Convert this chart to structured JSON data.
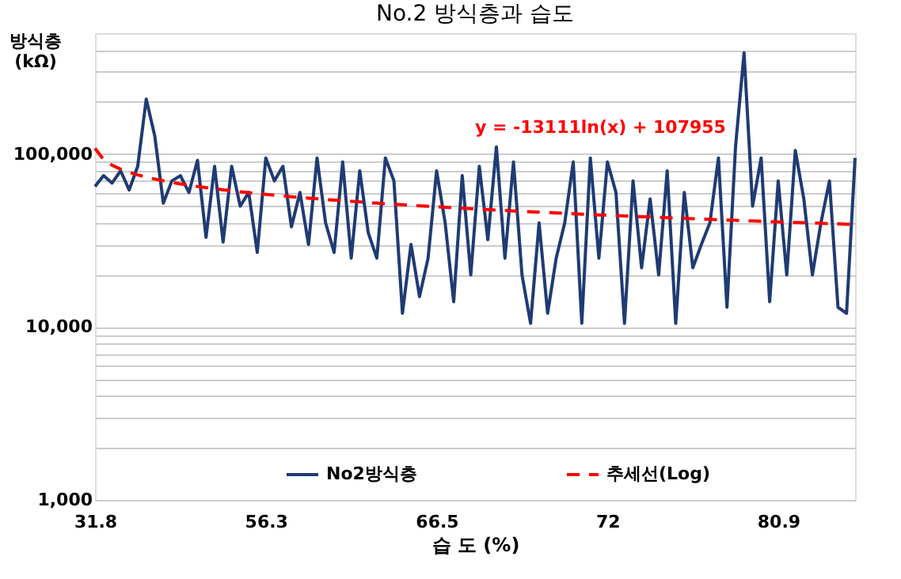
{
  "chart_data": {
    "type": "line",
    "title": "No.2 방식층과 습도",
    "xlabel": "습 도 (%)",
    "ylabel": "방식층 (kΩ)",
    "log": "y",
    "categories": [
      "31.8",
      null,
      null,
      null,
      null,
      null,
      null,
      null,
      null,
      null,
      null,
      null,
      null,
      null,
      null,
      null,
      null,
      null,
      null,
      null,
      "56.3",
      null,
      null,
      null,
      null,
      null,
      null,
      null,
      null,
      null,
      null,
      null,
      null,
      null,
      null,
      null,
      null,
      null,
      null,
      null,
      "66.5",
      null,
      null,
      null,
      null,
      null,
      null,
      null,
      null,
      null,
      null,
      null,
      null,
      null,
      null,
      null,
      null,
      null,
      null,
      null,
      "72",
      null,
      null,
      null,
      null,
      null,
      null,
      null,
      null,
      null,
      null,
      null,
      null,
      null,
      null,
      null,
      null,
      null,
      null,
      null,
      "80.9",
      null,
      null,
      null,
      null,
      null,
      null,
      null,
      null,
      null
    ],
    "series": [
      {
        "name": "No2방식층",
        "color": "#1f3b73",
        "line_style": "solid",
        "values": [
          65000,
          75000,
          68000,
          80000,
          62000,
          85000,
          208000,
          127000,
          52000,
          70000,
          75000,
          60000,
          92000,
          33000,
          85000,
          31000,
          85000,
          50000,
          60000,
          27000,
          95000,
          70000,
          85000,
          38000,
          60000,
          30000,
          95000,
          40000,
          27000,
          90000,
          25000,
          80000,
          35000,
          25000,
          95000,
          70000,
          12000,
          30000,
          15000,
          25000,
          80000,
          40000,
          14000,
          75000,
          20000,
          85000,
          32000,
          110000,
          25000,
          90000,
          20000,
          10500,
          40000,
          12000,
          25000,
          40000,
          90000,
          10500,
          95000,
          25000,
          90000,
          60000,
          10500,
          70000,
          22000,
          55000,
          20000,
          80000,
          10500,
          60000,
          22000,
          30000,
          40000,
          95000,
          13000,
          110000,
          385000,
          50000,
          95000,
          14000,
          70000,
          20000,
          105000,
          55000,
          20000,
          40000,
          70000,
          13000,
          12000,
          95000
        ]
      },
      {
        "name": "추세선(Log)",
        "color": "#ff0000",
        "line_style": "dashed",
        "values": [
          107955,
          93020,
          86220,
          81760,
          78440,
          75790,
          73590,
          71720,
          70060,
          68610,
          67290,
          66090,
          64990,
          63980,
          63040,
          62170,
          61350,
          60570,
          59840,
          59160,
          58500,
          57870,
          57270,
          56700,
          56150,
          55630,
          55130,
          54650,
          54160,
          53720,
          53280,
          52860,
          52440,
          52050,
          51670,
          51290,
          50920,
          50570,
          50230,
          49890,
          49560,
          49240,
          48930,
          48630,
          48330,
          48020,
          47750,
          47470,
          47190,
          46920,
          46660,
          46410,
          46160,
          45900,
          45670,
          45430,
          45190,
          44960,
          44730,
          44510,
          44300,
          44080,
          43870,
          43660,
          43460,
          43250,
          43060,
          42860,
          42680,
          42470,
          42280,
          42100,
          41930,
          41740,
          41560,
          41390,
          41220,
          41050,
          40880,
          40710,
          40550,
          40390,
          40220,
          40070,
          39910,
          39770,
          39610,
          39450,
          39310,
          39160
        ]
      }
    ],
    "ylim": [
      1000,
      500000
    ],
    "yticks": [
      {
        "value": 1000,
        "label": "1,000"
      },
      {
        "value": 2000,
        "label": null
      },
      {
        "value": 3000,
        "label": null
      },
      {
        "value": 4000,
        "label": null
      },
      {
        "value": 5000,
        "label": null
      },
      {
        "value": 6000,
        "label": null
      },
      {
        "value": 7000,
        "label": null
      },
      {
        "value": 8000,
        "label": null
      },
      {
        "value": 9000,
        "label": null
      },
      {
        "value": 10000,
        "label": "10,000"
      },
      {
        "value": 20000,
        "label": null
      },
      {
        "value": 30000,
        "label": null
      },
      {
        "value": 40000,
        "label": null
      },
      {
        "value": 50000,
        "label": null
      },
      {
        "value": 60000,
        "label": null
      },
      {
        "value": 70000,
        "label": null
      },
      {
        "value": 80000,
        "label": null
      },
      {
        "value": 90000,
        "label": null
      },
      {
        "value": 100000,
        "label": "100,000"
      },
      {
        "value": 200000,
        "label": null
      },
      {
        "value": 300000,
        "label": null
      },
      {
        "value": 400000,
        "label": null
      }
    ],
    "grid": "y",
    "legend": "bottom",
    "annotations": [
      "y = -13111ln(x) + 107955"
    ]
  }
}
